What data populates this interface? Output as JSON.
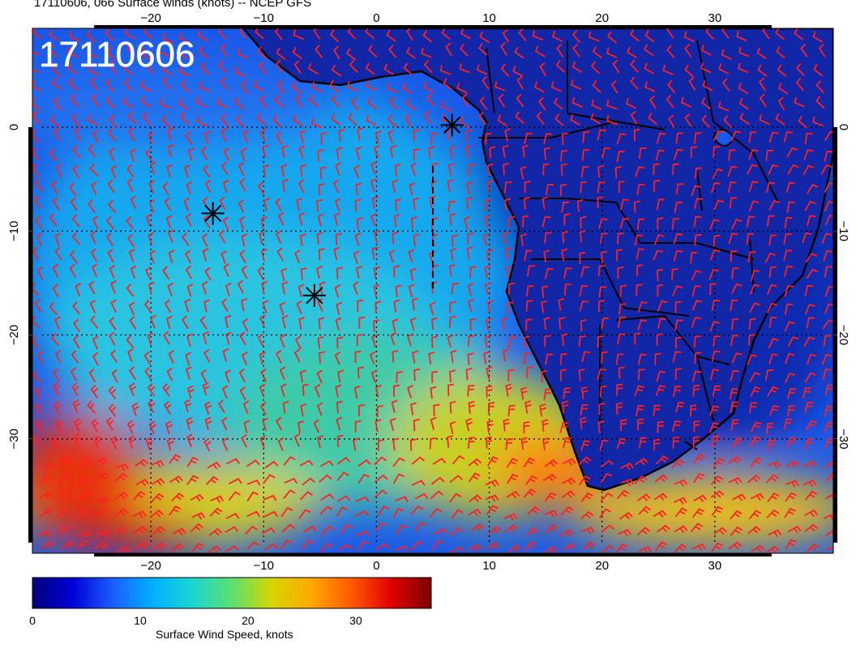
{
  "title": "17110606, 066 Surface winds (knots) -- NCEP GFS",
  "stamp": "17110606",
  "map": {
    "lon_ticks_bottom": [
      "−20",
      "−10",
      "0",
      "10",
      "20",
      "30"
    ],
    "lon_ticks_top": [
      "−20",
      "−10",
      "0",
      "10",
      "20",
      "30"
    ],
    "lat_ticks_left": [
      "0",
      "−10",
      "−20",
      "−30"
    ],
    "lat_ticks_right": [
      "0",
      "−10",
      "−20",
      "−30"
    ],
    "lon_values": [
      -20,
      -10,
      0,
      10,
      20,
      30
    ],
    "lat_values": [
      0,
      -10,
      -20,
      -30
    ],
    "extent": {
      "lon_min": -30.5,
      "lon_max": 40.5,
      "lat_min": -41,
      "lat_max": 9.5
    },
    "wind_barb_color": "#ff2020",
    "coast_color": "#000000",
    "grid_color": "#000000",
    "markers": [
      {
        "symbol": "asterisk",
        "lon": 6.7,
        "lat": 0.2
      },
      {
        "symbol": "asterisk",
        "lon": -14.5,
        "lat": -8.3
      },
      {
        "symbol": "asterisk",
        "lon": -5.5,
        "lat": -16.2
      }
    ]
  },
  "colorbar": {
    "label": "Surface Wind Speed, knots",
    "ticks": [
      "0",
      "10",
      "20",
      "30"
    ],
    "tick_values": [
      0,
      10,
      20,
      30
    ],
    "range": [
      0,
      37
    ],
    "colors": [
      "#00007a",
      "#0000d8",
      "#1a5cff",
      "#00b0ff",
      "#1ad6d0",
      "#5ce070",
      "#d6d600",
      "#ffa800",
      "#ff5a00",
      "#e00000",
      "#7a0000"
    ]
  }
}
